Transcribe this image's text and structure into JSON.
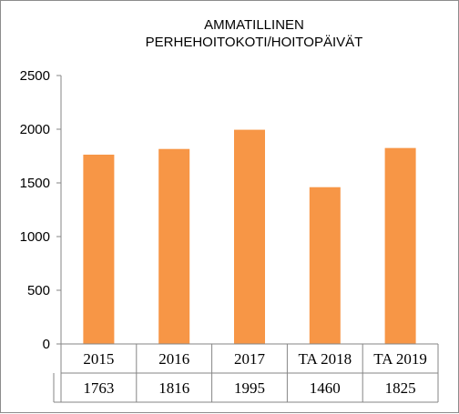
{
  "chart_data": {
    "type": "bar",
    "title_lines": [
      "AMMATILLINEN",
      "PERHEHOITOKOTI/HOITOPÄIVÄT"
    ],
    "categories": [
      "2015",
      "2016",
      "2017",
      "TA 2018",
      "TA 2019"
    ],
    "values": [
      1763,
      1816,
      1995,
      1460,
      1825
    ],
    "value_labels": [
      "1763",
      "1816",
      "1995",
      "1460",
      "1825"
    ],
    "ylim": [
      0,
      2500
    ],
    "yticks": [
      0,
      500,
      1000,
      1500,
      2000,
      2500
    ],
    "ytick_labels": [
      "0",
      "500",
      "1000",
      "1500",
      "2000",
      "2500"
    ],
    "bar_color": "#F79646",
    "grid": false,
    "legend": "none",
    "data_table": true
  }
}
